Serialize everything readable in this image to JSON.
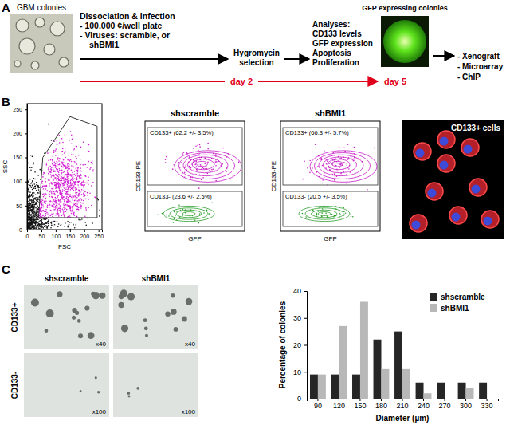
{
  "chart_data": {
    "type": "bar",
    "categories": [
      "90",
      "120",
      "150",
      "180",
      "210",
      "240",
      "270",
      "300",
      "330"
    ],
    "series": [
      {
        "name": "shscramble",
        "color": "#262626",
        "values": [
          9,
          9,
          9,
          22,
          25,
          6,
          6,
          6,
          6
        ]
      },
      {
        "name": "shBMI1",
        "color": "#b8b8b8",
        "values": [
          9,
          27,
          36,
          11,
          11,
          2,
          0,
          4,
          0
        ]
      }
    ],
    "x_label": "Diameter (µm)",
    "y_label": "Percentage of colonies",
    "ylim": [
      0,
      40
    ],
    "yticks": [
      0,
      10,
      20,
      30,
      40
    ],
    "legend": "top-right",
    "grid": false
  },
  "figure": {
    "panel_labels": [
      "A",
      "B",
      "C"
    ],
    "panel_a": {
      "source_label": "GBM colonies",
      "step1": [
        "Dissociation & infection",
        "- 100.000 ¢/well plate",
        "- Viruses: scramble, or",
        "shBMI1"
      ],
      "step2": [
        "Hygromycin",
        "selection"
      ],
      "step3": [
        "Analyses:",
        "CD133 levels",
        "GFP expression",
        "Apoptosis",
        "Proliferation"
      ],
      "result_label": "GFP expressing colonies",
      "outputs": [
        "- Xenograft",
        "- Microarray",
        "- ChIP"
      ],
      "timeline": [
        "day 2",
        "day 5"
      ]
    },
    "panel_b": {
      "gate_plot": {
        "x_label": "FSC",
        "y_label": "SSC",
        "xlim": [
          0,
          262
        ],
        "ylim": [
          0,
          262
        ],
        "xticks": [
          0,
          50,
          100,
          150,
          200,
          250
        ],
        "yticks": [
          0,
          50,
          100,
          150,
          200,
          250
        ]
      },
      "plots": [
        {
          "title": "shscramble",
          "gates": [
            "CD133+ (62.2 +/- 3.5%)",
            "CD133- (23.6 +/- 2.5%)"
          ]
        },
        {
          "title": "shBMI1",
          "gates": [
            "CD133+ (66.3 +/- 5.7%)",
            "CD133- (20.5 +/- 3.5%)"
          ]
        }
      ],
      "x_label": "GFP",
      "y_label": "CD133-PE",
      "image_label": "CD133+ cells"
    },
    "panel_c": {
      "columns": [
        "shscramble",
        "shBMI1"
      ],
      "rows": [
        "CD133+",
        "CD133-"
      ],
      "magnifications": [
        [
          "x40",
          "x40"
        ],
        [
          "x100",
          "x100"
        ]
      ]
    }
  }
}
